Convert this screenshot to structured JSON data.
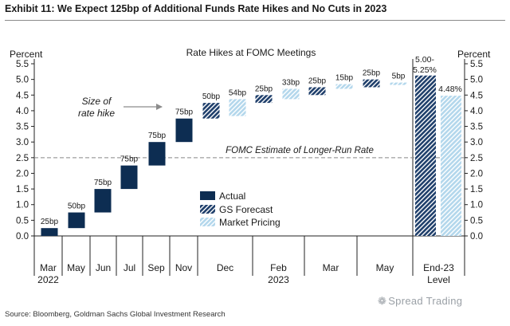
{
  "header": {
    "title": "Exhibit 11: We Expect 125bp of Additional Funds Rate Hikes and No Cuts in 2023"
  },
  "source": "Source: Bloomberg, Goldman Sachs Global Investment Research",
  "watermark": "Spread Trading",
  "colors": {
    "actual": "#0d2d52",
    "gs_forecast": "#1f3f6b",
    "market_pricing": "#b3d7ec",
    "rate_line": "#888888"
  },
  "chart_data": {
    "type": "bar",
    "subtitle": "Rate Hikes at FOMC Meetings",
    "ylabel_left": "Percent",
    "ylabel_right": "Percent",
    "ylim": [
      0,
      5.5
    ],
    "yticks": [
      "0.0",
      "0.5",
      "1.0",
      "1.5",
      "2.0",
      "2.5",
      "3.0",
      "3.5",
      "4.0",
      "4.5",
      "5.0",
      "5.5"
    ],
    "x_labels": [
      {
        "label": "Mar",
        "sub": "2022"
      },
      {
        "label": "May",
        "sub": ""
      },
      {
        "label": "Jun",
        "sub": ""
      },
      {
        "label": "Jul",
        "sub": ""
      },
      {
        "label": "Sep",
        "sub": ""
      },
      {
        "label": "Nov",
        "sub": ""
      },
      {
        "label": "Dec",
        "sub": ""
      },
      {
        "label": "Feb",
        "sub": "2023"
      },
      {
        "label": "Mar",
        "sub": ""
      },
      {
        "label": "May",
        "sub": ""
      },
      {
        "label": "End-23",
        "sub": "Level"
      }
    ],
    "series": [
      {
        "name": "Actual",
        "points": [
          {
            "meeting": "Mar 2022",
            "from": 0.0,
            "to": 0.25,
            "label": "25bp"
          },
          {
            "meeting": "May",
            "from": 0.25,
            "to": 0.75,
            "label": "50bp"
          },
          {
            "meeting": "Jun",
            "from": 0.75,
            "to": 1.5,
            "label": "75bp"
          },
          {
            "meeting": "Jul",
            "from": 1.5,
            "to": 2.25,
            "label": "75bp"
          },
          {
            "meeting": "Sep",
            "from": 2.25,
            "to": 3.0,
            "label": "75bp"
          },
          {
            "meeting": "Nov",
            "from": 3.0,
            "to": 3.75,
            "label": "75bp"
          }
        ]
      },
      {
        "name": "GS Forecast",
        "points": [
          {
            "meeting": "Dec",
            "from": 3.75,
            "to": 4.25,
            "label": "50bp"
          },
          {
            "meeting": "Feb 2023",
            "from": 4.25,
            "to": 4.5,
            "label": "25bp"
          },
          {
            "meeting": "Mar",
            "from": 4.5,
            "to": 4.75,
            "label": "25bp"
          },
          {
            "meeting": "May",
            "from": 4.75,
            "to": 5.0,
            "label": "25bp"
          }
        ],
        "end_level": {
          "value": 5.125,
          "label": "5.00-\n5.25%"
        }
      },
      {
        "name": "Market Pricing",
        "points": [
          {
            "meeting": "Dec",
            "from": 3.83,
            "to": 4.37,
            "label": "54bp"
          },
          {
            "meeting": "Feb 2023",
            "from": 4.37,
            "to": 4.7,
            "label": "33bp"
          },
          {
            "meeting": "Mar",
            "from": 4.7,
            "to": 4.85,
            "label": "15bp"
          },
          {
            "meeting": "May",
            "from": 4.85,
            "to": 4.9,
            "label": "5bp"
          }
        ],
        "end_level": {
          "value": 4.48,
          "label": "4.48%"
        }
      }
    ],
    "reference_line": {
      "value": 2.5,
      "label": "FOMC Estimate of Longer-Run Rate"
    },
    "annotation": {
      "text_line1": "Size of",
      "text_line2": "rate hike"
    },
    "legend": [
      "Actual",
      "GS Forecast",
      "Market Pricing"
    ],
    "grid": false
  }
}
